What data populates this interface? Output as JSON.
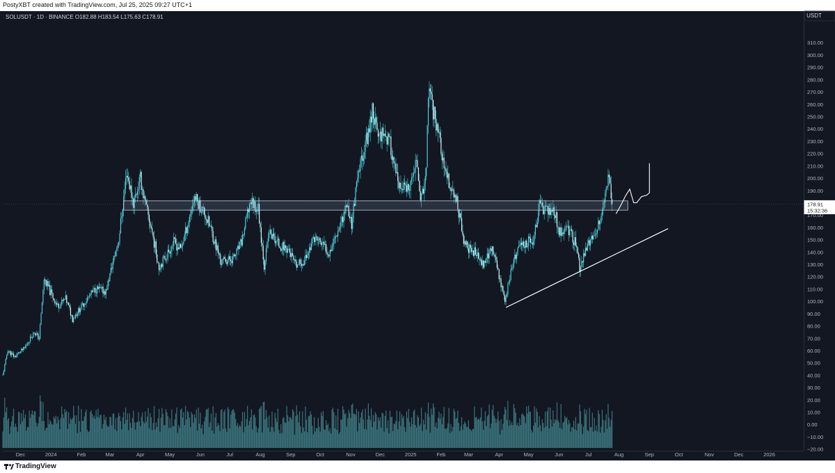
{
  "header": {
    "credit": "PostyXBT created with TradingView.com, Jul 25, 2025 09:27 UTC+1"
  },
  "symbol_line": "SOLUSDT · 1D · BINANCE  O182.88  H183.54  L175.63  C178.91",
  "footer": {
    "brand": "TradingView"
  },
  "colors": {
    "background": "#131722",
    "candle": "#4ed1d9",
    "volume": "#3f7e86",
    "annotation": "#ffffff",
    "text": "#b2b5be"
  },
  "chart_data": {
    "type": "candlestick",
    "symbol": "SOLUSDT",
    "interval": "1D",
    "exchange": "BINANCE",
    "ohlc_last": {
      "open": 182.88,
      "high": 183.54,
      "low": 175.63,
      "close": 178.91
    },
    "currency": "USDT",
    "last_price_label": "178.91",
    "countdown_label": "15:32:36",
    "ylim": [
      -30,
      315
    ],
    "y_ticks": [
      -20,
      -10,
      0,
      10,
      20,
      30,
      40,
      50,
      60,
      70,
      80,
      90,
      100,
      110,
      120,
      130,
      140,
      150,
      160,
      170,
      180,
      190,
      200,
      210,
      220,
      230,
      240,
      250,
      260,
      270,
      280,
      290,
      300,
      310
    ],
    "y_tick_labels": [
      "−20.00",
      "−10.00",
      "0.00",
      "10.00",
      "20.00",
      "30.00",
      "40.00",
      "50.00",
      "60.00",
      "70.00",
      "80.00",
      "90.00",
      "100.00",
      "110.00",
      "120.00",
      "130.00",
      "140.00",
      "150.00",
      "160.00",
      "170.00",
      "180.00",
      "190.00",
      "200.00",
      "210.00",
      "220.00",
      "230.00",
      "240.00",
      "250.00",
      "260.00",
      "270.00",
      "280.00",
      "290.00",
      "300.00",
      "310.00"
    ],
    "x_ticks": [
      {
        "label": "Dec",
        "date": "2023-12-01"
      },
      {
        "label": "2024",
        "date": "2024-01-01"
      },
      {
        "label": "Feb",
        "date": "2024-02-01"
      },
      {
        "label": "Mar",
        "date": "2024-03-01"
      },
      {
        "label": "Apr",
        "date": "2024-04-01"
      },
      {
        "label": "May",
        "date": "2024-05-01"
      },
      {
        "label": "Jun",
        "date": "2024-06-01"
      },
      {
        "label": "Jul",
        "date": "2024-07-01"
      },
      {
        "label": "Aug",
        "date": "2024-08-01"
      },
      {
        "label": "Sep",
        "date": "2024-09-01"
      },
      {
        "label": "Oct",
        "date": "2024-10-01"
      },
      {
        "label": "Nov",
        "date": "2024-11-01"
      },
      {
        "label": "Dec",
        "date": "2024-12-01"
      },
      {
        "label": "2025",
        "date": "2025-01-01"
      },
      {
        "label": "Feb",
        "date": "2025-02-01"
      },
      {
        "label": "Mar",
        "date": "2025-03-01"
      },
      {
        "label": "Apr",
        "date": "2025-04-01"
      },
      {
        "label": "May",
        "date": "2025-05-01"
      },
      {
        "label": "Jun",
        "date": "2025-06-01"
      },
      {
        "label": "Jul",
        "date": "2025-07-01"
      },
      {
        "label": "Aug",
        "date": "2025-08-01"
      },
      {
        "label": "Sep",
        "date": "2025-09-01"
      },
      {
        "label": "Oct",
        "date": "2025-10-01"
      },
      {
        "label": "Nov",
        "date": "2025-11-01"
      },
      {
        "label": "Dec",
        "date": "2025-12-01"
      },
      {
        "label": "2026",
        "date": "2026-01-01"
      }
    ],
    "x_range": [
      "2023-11-13",
      "2026-02-05"
    ],
    "price_path": [
      [
        "2023-11-13",
        40
      ],
      [
        "2023-11-18",
        60
      ],
      [
        "2023-11-25",
        55
      ],
      [
        "2023-12-05",
        62
      ],
      [
        "2023-12-15",
        75
      ],
      [
        "2023-12-20",
        70
      ],
      [
        "2023-12-25",
        118
      ],
      [
        "2024-01-02",
        105
      ],
      [
        "2024-01-08",
        96
      ],
      [
        "2024-01-16",
        102
      ],
      [
        "2024-01-23",
        86
      ],
      [
        "2024-02-05",
        100
      ],
      [
        "2024-02-15",
        110
      ],
      [
        "2024-02-26",
        108
      ],
      [
        "2024-03-05",
        135
      ],
      [
        "2024-03-10",
        150
      ],
      [
        "2024-03-18",
        205
      ],
      [
        "2024-03-25",
        180
      ],
      [
        "2024-04-01",
        200
      ],
      [
        "2024-04-06",
        178
      ],
      [
        "2024-04-12",
        160
      ],
      [
        "2024-04-20",
        128
      ],
      [
        "2024-04-28",
        138
      ],
      [
        "2024-05-05",
        148
      ],
      [
        "2024-05-12",
        142
      ],
      [
        "2024-05-20",
        165
      ],
      [
        "2024-05-26",
        185
      ],
      [
        "2024-06-05",
        172
      ],
      [
        "2024-06-12",
        158
      ],
      [
        "2024-06-22",
        132
      ],
      [
        "2024-07-05",
        135
      ],
      [
        "2024-07-13",
        148
      ],
      [
        "2024-07-22",
        182
      ],
      [
        "2024-07-30",
        175
      ],
      [
        "2024-08-05",
        130
      ],
      [
        "2024-08-10",
        156
      ],
      [
        "2024-08-20",
        146
      ],
      [
        "2024-08-30",
        142
      ],
      [
        "2024-09-06",
        128
      ],
      [
        "2024-09-15",
        133
      ],
      [
        "2024-09-25",
        152
      ],
      [
        "2024-10-01",
        148
      ],
      [
        "2024-10-10",
        140
      ],
      [
        "2024-10-20",
        160
      ],
      [
        "2024-10-28",
        178
      ],
      [
        "2024-11-02",
        163
      ],
      [
        "2024-11-06",
        188
      ],
      [
        "2024-11-12",
        216
      ],
      [
        "2024-11-20",
        240
      ],
      [
        "2024-11-23",
        258
      ],
      [
        "2024-11-28",
        235
      ],
      [
        "2024-12-05",
        238
      ],
      [
        "2024-12-12",
        225
      ],
      [
        "2024-12-20",
        190
      ],
      [
        "2024-12-26",
        193
      ],
      [
        "2024-12-31",
        188
      ],
      [
        "2025-01-06",
        214
      ],
      [
        "2025-01-12",
        183
      ],
      [
        "2025-01-17",
        205
      ],
      [
        "2025-01-19",
        270
      ],
      [
        "2025-01-24",
        255
      ],
      [
        "2025-01-30",
        236
      ],
      [
        "2025-02-04",
        205
      ],
      [
        "2025-02-10",
        195
      ],
      [
        "2025-02-18",
        178
      ],
      [
        "2025-02-25",
        145
      ],
      [
        "2025-03-05",
        142
      ],
      [
        "2025-03-15",
        130
      ],
      [
        "2025-03-25",
        143
      ],
      [
        "2025-04-01",
        122
      ],
      [
        "2025-04-07",
        100
      ],
      [
        "2025-04-14",
        128
      ],
      [
        "2025-04-22",
        145
      ],
      [
        "2025-04-28",
        148
      ],
      [
        "2025-05-06",
        149
      ],
      [
        "2025-05-12",
        178
      ],
      [
        "2025-05-20",
        173
      ],
      [
        "2025-05-26",
        176
      ],
      [
        "2025-06-02",
        156
      ],
      [
        "2025-06-10",
        160
      ],
      [
        "2025-06-17",
        148
      ],
      [
        "2025-06-22",
        128
      ],
      [
        "2025-06-30",
        145
      ],
      [
        "2025-07-08",
        155
      ],
      [
        "2025-07-14",
        168
      ],
      [
        "2025-07-18",
        188
      ],
      [
        "2025-07-22",
        203
      ],
      [
        "2025-07-25",
        178.91
      ]
    ],
    "volume_ticks": [
      -20,
      -10,
      0,
      10,
      20,
      30
    ],
    "resistance_zone": {
      "from": "2024-03-15",
      "to": "2025-08-10",
      "low": 174,
      "high": 181.5,
      "fill": "rgba(140,160,190,0.18)"
    },
    "support_trendline": {
      "start": [
        "2025-04-08",
        95
      ],
      "end": [
        "2025-09-20",
        159
      ]
    },
    "projection_path": [
      [
        "2025-07-29",
        171
      ],
      [
        "2025-08-03",
        178
      ],
      [
        "2025-08-08",
        186
      ],
      [
        "2025-08-12",
        191
      ],
      [
        "2025-08-16",
        180
      ],
      [
        "2025-08-19",
        180
      ],
      [
        "2025-08-24",
        185
      ],
      [
        "2025-08-29",
        186
      ],
      [
        "2025-09-01",
        188
      ],
      [
        "2025-09-01",
        212
      ]
    ]
  }
}
